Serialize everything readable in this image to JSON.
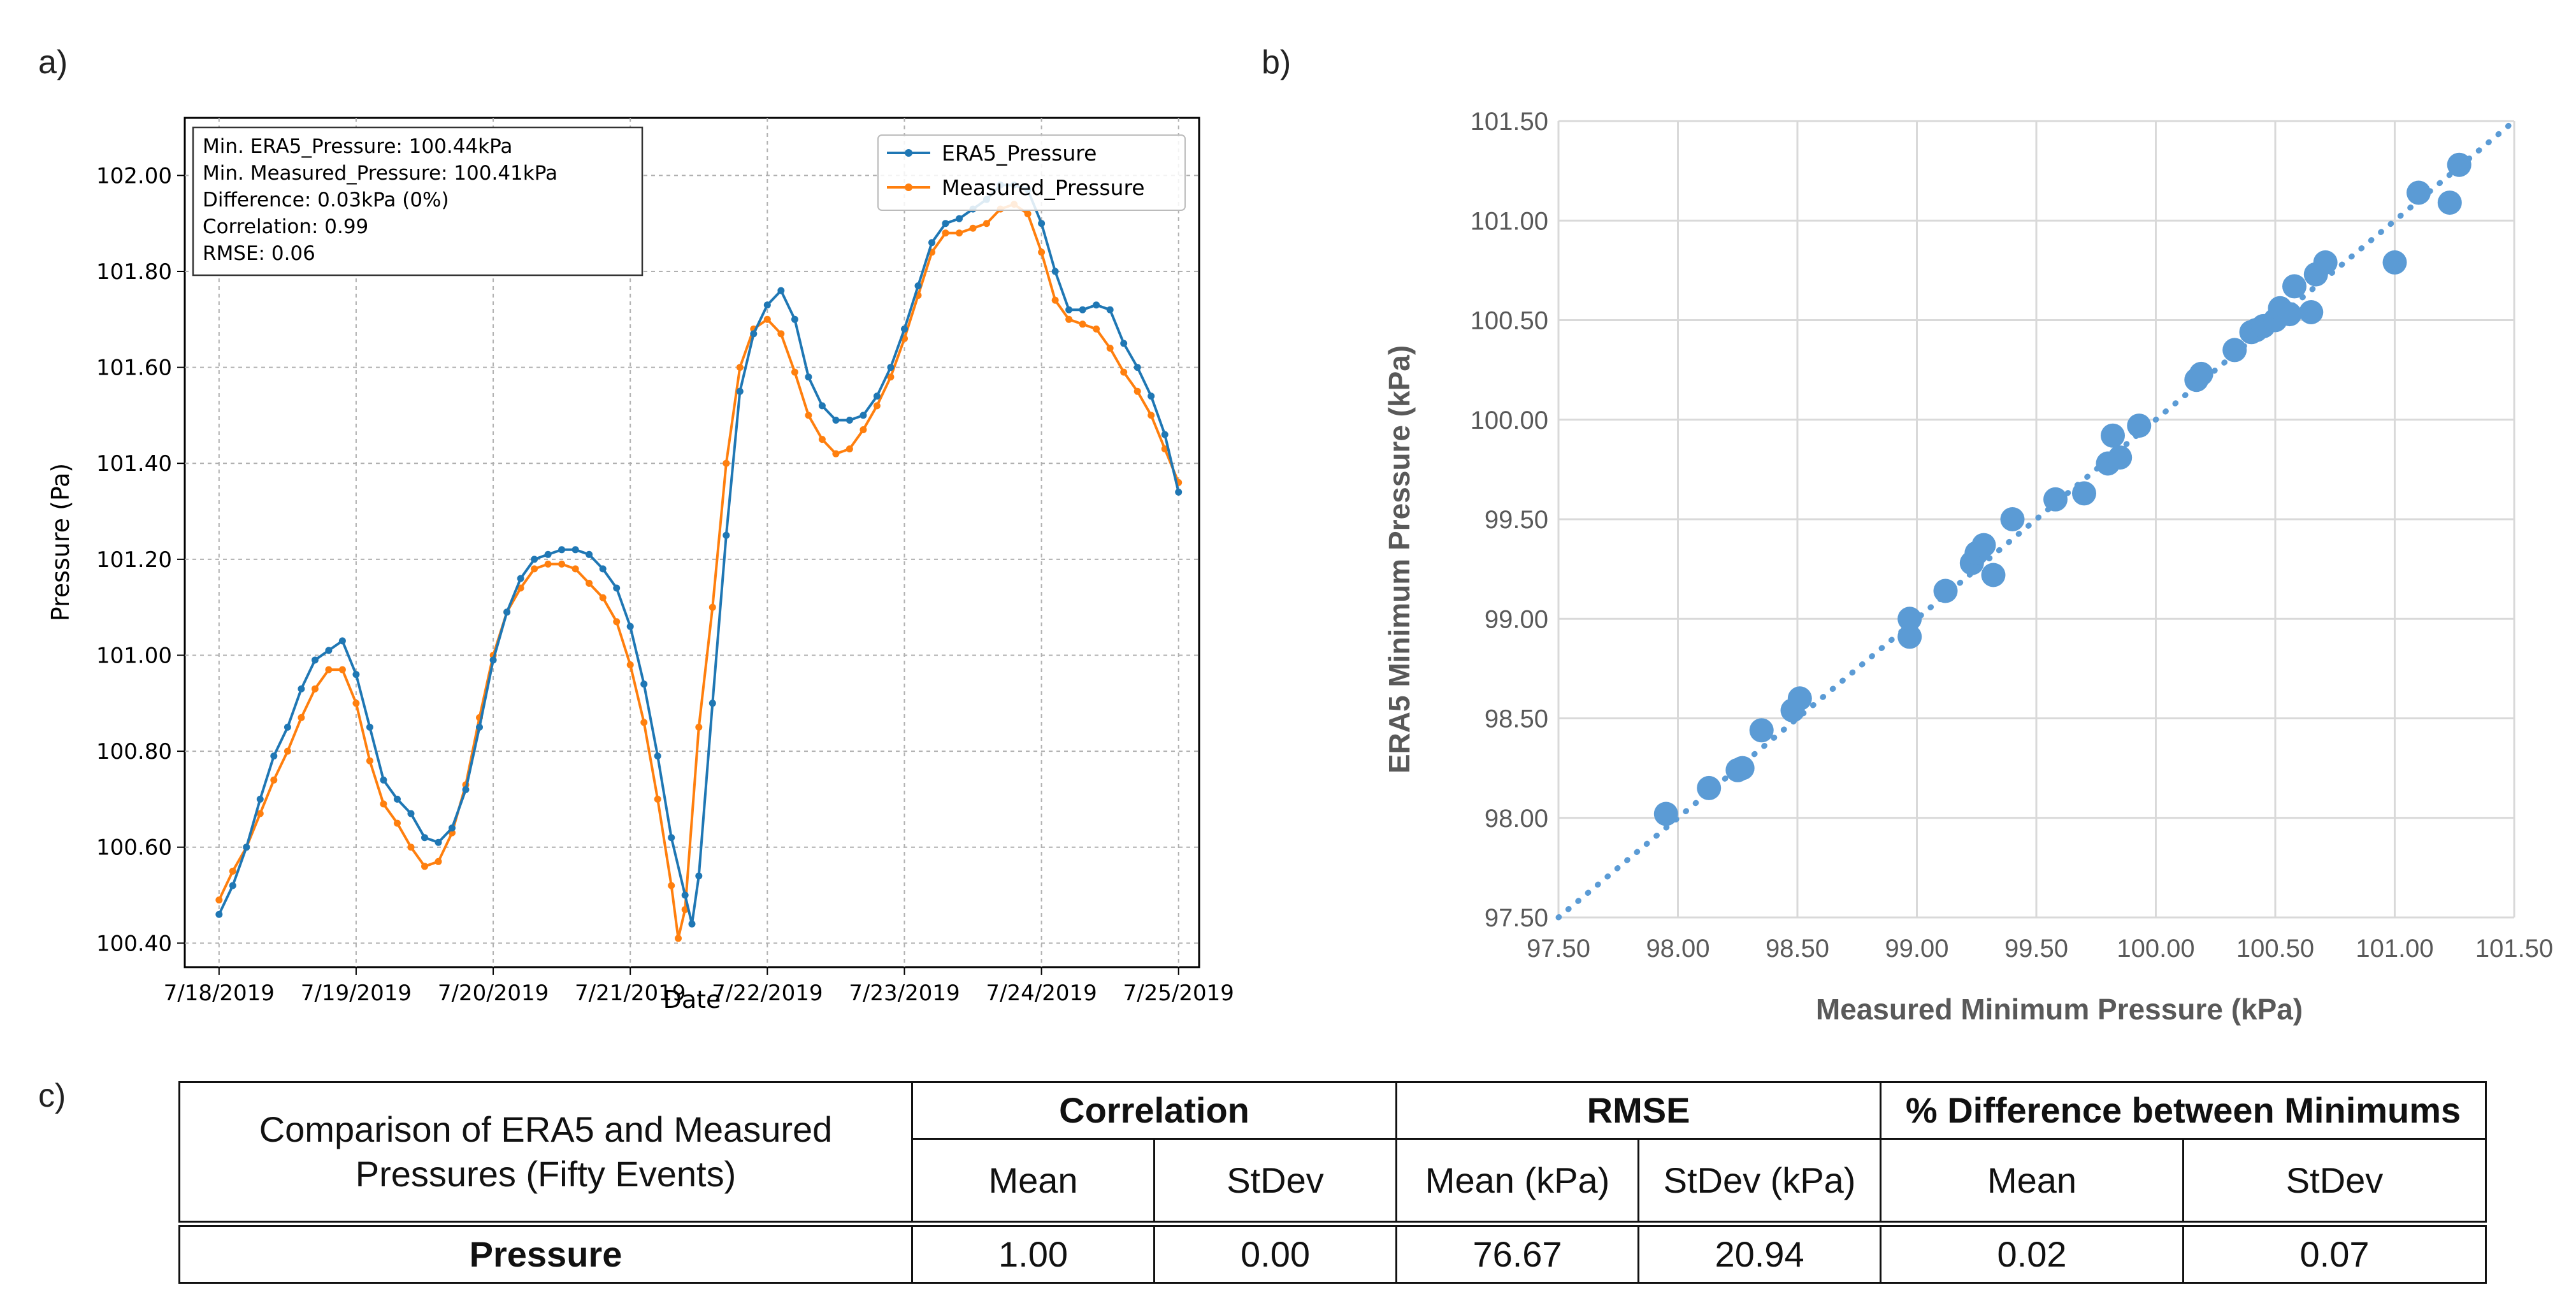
{
  "panel_labels": {
    "a": "a)",
    "b": "b)",
    "c": "c)"
  },
  "chart_data": [
    {
      "id": "a",
      "type": "line",
      "xlabel": "Date",
      "ylabel": "Pressure (Pa)",
      "ylim": [
        100.35,
        102.12
      ],
      "yticks": [
        100.4,
        100.6,
        100.8,
        101.0,
        101.2,
        101.4,
        101.6,
        101.8,
        102.0
      ],
      "ytick_labels": [
        "100.40",
        "100.60",
        "100.80",
        "101.00",
        "101.20",
        "101.40",
        "101.60",
        "101.80",
        "102.00"
      ],
      "xlim_days": [
        -0.25,
        7.15
      ],
      "xticks_days": [
        0,
        1,
        2,
        3,
        4,
        5,
        6,
        7
      ],
      "xtick_labels": [
        "7/18/2019",
        "7/19/2019",
        "7/20/2019",
        "7/21/2019",
        "7/22/2019",
        "7/23/2019",
        "7/24/2019",
        "7/25/2019"
      ],
      "grid": true,
      "legend_position": "top-right",
      "stats_box": [
        "Min. ERA5_Pressure: 100.44kPa",
        "Min. Measured_Pressure: 100.41kPa",
        "Difference: 0.03kPa (0%)",
        "Correlation: 0.99",
        "RMSE: 0.06"
      ],
      "series": [
        {
          "name": "ERA5_Pressure",
          "color": "#1f77b4",
          "points": [
            [
              0,
              100.46
            ],
            [
              0.1,
              100.52
            ],
            [
              0.2,
              100.6
            ],
            [
              0.3,
              100.7
            ],
            [
              0.4,
              100.79
            ],
            [
              0.5,
              100.85
            ],
            [
              0.6,
              100.93
            ],
            [
              0.7,
              100.99
            ],
            [
              0.8,
              101.01
            ],
            [
              0.9,
              101.03
            ],
            [
              1.0,
              100.96
            ],
            [
              1.1,
              100.85
            ],
            [
              1.2,
              100.74
            ],
            [
              1.3,
              100.7
            ],
            [
              1.4,
              100.67
            ],
            [
              1.5,
              100.62
            ],
            [
              1.6,
              100.61
            ],
            [
              1.7,
              100.64
            ],
            [
              1.8,
              100.72
            ],
            [
              1.9,
              100.85
            ],
            [
              2.0,
              100.99
            ],
            [
              2.1,
              101.09
            ],
            [
              2.2,
              101.16
            ],
            [
              2.3,
              101.2
            ],
            [
              2.4,
              101.21
            ],
            [
              2.5,
              101.22
            ],
            [
              2.6,
              101.22
            ],
            [
              2.7,
              101.21
            ],
            [
              2.8,
              101.18
            ],
            [
              2.9,
              101.14
            ],
            [
              3.0,
              101.06
            ],
            [
              3.1,
              100.94
            ],
            [
              3.2,
              100.79
            ],
            [
              3.3,
              100.62
            ],
            [
              3.4,
              100.5
            ],
            [
              3.45,
              100.44
            ],
            [
              3.5,
              100.54
            ],
            [
              3.6,
              100.9
            ],
            [
              3.7,
              101.25
            ],
            [
              3.8,
              101.55
            ],
            [
              3.9,
              101.67
            ],
            [
              4.0,
              101.73
            ],
            [
              4.1,
              101.76
            ],
            [
              4.2,
              101.7
            ],
            [
              4.3,
              101.58
            ],
            [
              4.4,
              101.52
            ],
            [
              4.5,
              101.49
            ],
            [
              4.6,
              101.49
            ],
            [
              4.7,
              101.5
            ],
            [
              4.8,
              101.54
            ],
            [
              4.9,
              101.6
            ],
            [
              5.0,
              101.68
            ],
            [
              5.1,
              101.77
            ],
            [
              5.2,
              101.86
            ],
            [
              5.3,
              101.9
            ],
            [
              5.4,
              101.91
            ],
            [
              5.5,
              101.93
            ],
            [
              5.6,
              101.95
            ],
            [
              5.7,
              101.98
            ],
            [
              5.8,
              101.98
            ],
            [
              5.9,
              101.97
            ],
            [
              6.0,
              101.9
            ],
            [
              6.1,
              101.8
            ],
            [
              6.2,
              101.72
            ],
            [
              6.3,
              101.72
            ],
            [
              6.4,
              101.73
            ],
            [
              6.5,
              101.72
            ],
            [
              6.6,
              101.65
            ],
            [
              6.7,
              101.6
            ],
            [
              6.8,
              101.54
            ],
            [
              6.9,
              101.46
            ],
            [
              7.0,
              101.34
            ]
          ]
        },
        {
          "name": "Measured_Pressure",
          "color": "#ff7f0e",
          "points": [
            [
              0,
              100.49
            ],
            [
              0.1,
              100.55
            ],
            [
              0.2,
              100.6
            ],
            [
              0.3,
              100.67
            ],
            [
              0.4,
              100.74
            ],
            [
              0.5,
              100.8
            ],
            [
              0.6,
              100.87
            ],
            [
              0.7,
              100.93
            ],
            [
              0.8,
              100.97
            ],
            [
              0.9,
              100.97
            ],
            [
              1.0,
              100.9
            ],
            [
              1.1,
              100.78
            ],
            [
              1.2,
              100.69
            ],
            [
              1.3,
              100.65
            ],
            [
              1.4,
              100.6
            ],
            [
              1.5,
              100.56
            ],
            [
              1.6,
              100.57
            ],
            [
              1.7,
              100.63
            ],
            [
              1.8,
              100.73
            ],
            [
              1.9,
              100.87
            ],
            [
              2.0,
              101.0
            ],
            [
              2.1,
              101.09
            ],
            [
              2.2,
              101.14
            ],
            [
              2.3,
              101.18
            ],
            [
              2.4,
              101.19
            ],
            [
              2.5,
              101.19
            ],
            [
              2.6,
              101.18
            ],
            [
              2.7,
              101.15
            ],
            [
              2.8,
              101.12
            ],
            [
              2.9,
              101.07
            ],
            [
              3.0,
              100.98
            ],
            [
              3.1,
              100.86
            ],
            [
              3.2,
              100.7
            ],
            [
              3.3,
              100.52
            ],
            [
              3.35,
              100.41
            ],
            [
              3.4,
              100.47
            ],
            [
              3.5,
              100.85
            ],
            [
              3.6,
              101.1
            ],
            [
              3.7,
              101.4
            ],
            [
              3.8,
              101.6
            ],
            [
              3.9,
              101.68
            ],
            [
              4.0,
              101.7
            ],
            [
              4.1,
              101.67
            ],
            [
              4.2,
              101.59
            ],
            [
              4.3,
              101.5
            ],
            [
              4.4,
              101.45
            ],
            [
              4.5,
              101.42
            ],
            [
              4.6,
              101.43
            ],
            [
              4.7,
              101.47
            ],
            [
              4.8,
              101.52
            ],
            [
              4.9,
              101.58
            ],
            [
              5.0,
              101.66
            ],
            [
              5.1,
              101.75
            ],
            [
              5.2,
              101.84
            ],
            [
              5.3,
              101.88
            ],
            [
              5.4,
              101.88
            ],
            [
              5.5,
              101.89
            ],
            [
              5.6,
              101.9
            ],
            [
              5.7,
              101.93
            ],
            [
              5.8,
              101.94
            ],
            [
              5.9,
              101.92
            ],
            [
              6.0,
              101.84
            ],
            [
              6.1,
              101.74
            ],
            [
              6.2,
              101.7
            ],
            [
              6.3,
              101.69
            ],
            [
              6.4,
              101.68
            ],
            [
              6.5,
              101.64
            ],
            [
              6.6,
              101.59
            ],
            [
              6.7,
              101.55
            ],
            [
              6.8,
              101.5
            ],
            [
              6.9,
              101.43
            ],
            [
              7.0,
              101.36
            ]
          ]
        }
      ]
    },
    {
      "id": "b",
      "type": "scatter",
      "xlabel": "Measured Minimum Pressure (kPa)",
      "ylabel": "ERA5 Minimum Pressure (kPa)",
      "xlim": [
        97.5,
        101.5
      ],
      "ylim": [
        97.5,
        101.5
      ],
      "ticks": [
        97.5,
        98.0,
        98.5,
        99.0,
        99.5,
        100.0,
        100.5,
        101.0,
        101.5
      ],
      "tick_labels": [
        "97.50",
        "98.00",
        "98.50",
        "99.00",
        "99.50",
        "100.00",
        "100.50",
        "101.00",
        "101.50"
      ],
      "grid": true,
      "marker_color": "#5b9bd5",
      "trendline": [
        [
          97.5,
          97.5
        ],
        [
          101.5,
          101.5
        ]
      ],
      "points": [
        [
          97.95,
          98.02
        ],
        [
          98.13,
          98.15
        ],
        [
          98.25,
          98.24
        ],
        [
          98.27,
          98.25
        ],
        [
          98.35,
          98.44
        ],
        [
          98.48,
          98.54
        ],
        [
          98.51,
          98.6
        ],
        [
          98.97,
          98.91
        ],
        [
          98.97,
          99.0
        ],
        [
          99.12,
          99.14
        ],
        [
          99.23,
          99.28
        ],
        [
          99.25,
          99.33
        ],
        [
          99.28,
          99.37
        ],
        [
          99.32,
          99.22
        ],
        [
          99.4,
          99.5
        ],
        [
          99.58,
          99.6
        ],
        [
          99.7,
          99.63
        ],
        [
          99.8,
          99.78
        ],
        [
          99.82,
          99.92
        ],
        [
          99.85,
          99.81
        ],
        [
          99.93,
          99.97
        ],
        [
          100.17,
          100.2
        ],
        [
          100.19,
          100.23
        ],
        [
          100.33,
          100.35
        ],
        [
          100.4,
          100.44
        ],
        [
          100.42,
          100.45
        ],
        [
          100.45,
          100.47
        ],
        [
          100.5,
          100.5
        ],
        [
          100.52,
          100.56
        ],
        [
          100.56,
          100.53
        ],
        [
          100.58,
          100.67
        ],
        [
          100.65,
          100.54
        ],
        [
          100.67,
          100.73
        ],
        [
          100.71,
          100.79
        ],
        [
          101.0,
          100.79
        ],
        [
          101.1,
          101.14
        ],
        [
          101.23,
          101.09
        ],
        [
          101.27,
          101.28
        ]
      ]
    }
  ],
  "table": {
    "row_header": "Comparison of ERA5 and Measured Pressures (Fifty Events)",
    "groups": [
      "Correlation",
      "RMSE",
      "% Difference between Minimums"
    ],
    "subheaders": [
      "Mean",
      "StDev",
      "Mean (kPa)",
      "StDev (kPa)",
      "Mean",
      "StDev"
    ],
    "row_label": "Pressure",
    "values": [
      "1.00",
      "0.00",
      "76.67",
      "20.94",
      "0.02",
      "0.07"
    ]
  }
}
